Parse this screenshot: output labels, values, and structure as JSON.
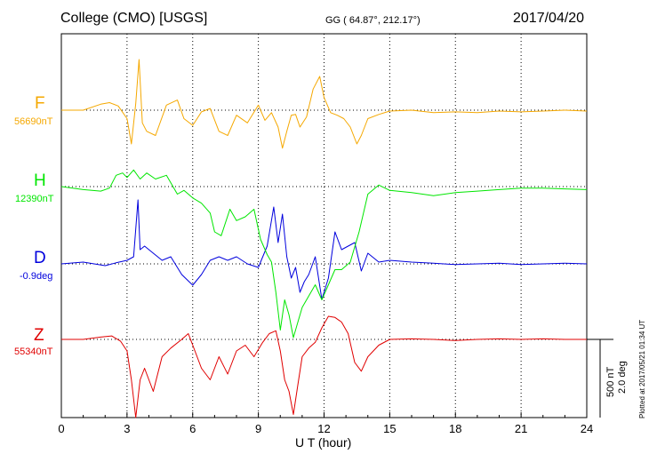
{
  "header": {
    "station": "College (CMO)  [USGS]",
    "coords": "GG ( 64.87°, 212.17°)",
    "date": "2017/04/20"
  },
  "colors": {
    "F": "#f5a800",
    "H": "#00e600",
    "D": "#0000dd",
    "Z": "#e00000",
    "grid": "#000000"
  },
  "channels": [
    {
      "letter": "F",
      "baseline": "56690nT",
      "color": "#f5a800"
    },
    {
      "letter": "H",
      "baseline": "12390nT",
      "color": "#00e600"
    },
    {
      "letter": "D",
      "baseline": "-0.9deg",
      "color": "#0000dd"
    },
    {
      "letter": "Z",
      "baseline": "55340nT",
      "color": "#e00000"
    }
  ],
  "scale": {
    "line1": "500 nT",
    "line2": "2.0 deg"
  },
  "plotted": "Plotted at 2017/05/21 01:34 UT",
  "chart_data": {
    "type": "line",
    "xlabel": "U T (hour)",
    "xlim": [
      0,
      24
    ],
    "xticks": [
      "0",
      "3",
      "6",
      "9",
      "12",
      "15",
      "18",
      "21",
      "24"
    ],
    "series": [
      {
        "name": "F",
        "unit": "nT",
        "x": [
          0,
          1,
          1.8,
          2.2,
          2.6,
          3.0,
          3.2,
          3.4,
          3.55,
          3.7,
          3.9,
          4.3,
          4.8,
          5.3,
          5.6,
          6.0,
          6.4,
          6.8,
          7.2,
          7.6,
          8.0,
          8.5,
          9.0,
          9.3,
          9.6,
          9.9,
          10.1,
          10.3,
          10.5,
          10.7,
          10.9,
          11.2,
          11.5,
          11.8,
          12.0,
          12.3,
          12.6,
          12.9,
          13.2,
          13.5,
          13.7,
          14.0,
          14.5,
          15,
          16,
          17,
          18,
          19,
          20,
          21,
          22,
          23,
          24
        ],
        "y": [
          0,
          0,
          70,
          90,
          50,
          -100,
          -400,
          80,
          600,
          -150,
          -250,
          -300,
          60,
          120,
          -100,
          -180,
          -20,
          20,
          -250,
          -300,
          -60,
          -150,
          60,
          -120,
          -30,
          -200,
          -450,
          -250,
          -60,
          -50,
          -200,
          -80,
          250,
          400,
          150,
          -30,
          -60,
          -100,
          -200,
          -400,
          -300,
          -100,
          -50,
          -10,
          0,
          -30,
          -20,
          -30,
          -10,
          -20,
          -10,
          0,
          -10
        ]
      },
      {
        "name": "H",
        "unit": "nT",
        "x": [
          0,
          1,
          1.8,
          2.2,
          2.5,
          2.8,
          3.0,
          3.3,
          3.6,
          3.9,
          4.3,
          4.8,
          5.3,
          5.6,
          6.0,
          6.4,
          6.8,
          7.0,
          7.3,
          7.7,
          8.0,
          8.4,
          8.8,
          9.1,
          9.4,
          9.6,
          9.8,
          10.0,
          10.2,
          10.4,
          10.6,
          10.8,
          11.0,
          11.2,
          11.4,
          11.6,
          11.9,
          12.2,
          12.5,
          12.8,
          13.2,
          13.6,
          14.0,
          14.5,
          15,
          16,
          17,
          18,
          19,
          20,
          21,
          22,
          23,
          24
        ],
        "y": [
          0,
          -40,
          -60,
          -20,
          150,
          180,
          120,
          220,
          100,
          180,
          100,
          150,
          -100,
          -50,
          -150,
          -220,
          -350,
          -600,
          -650,
          -300,
          -450,
          -400,
          -300,
          -700,
          -900,
          -1000,
          -1400,
          -1900,
          -1500,
          -1700,
          -2000,
          -1800,
          -1600,
          -1500,
          -1400,
          -1300,
          -1500,
          -1300,
          -1100,
          -1100,
          -1000,
          -600,
          -100,
          20,
          -50,
          -80,
          -120,
          -80,
          -60,
          -40,
          -20,
          -20,
          -30,
          -40
        ]
      },
      {
        "name": "D",
        "unit": "deg",
        "x": [
          0,
          1,
          2,
          2.5,
          3.0,
          3.3,
          3.5,
          3.6,
          3.8,
          4.2,
          4.6,
          5.0,
          5.5,
          6.0,
          6.4,
          6.8,
          7.2,
          7.6,
          8.0,
          8.5,
          9.0,
          9.4,
          9.7,
          9.9,
          10.1,
          10.3,
          10.5,
          10.7,
          10.9,
          11.1,
          11.3,
          11.6,
          11.9,
          12.2,
          12.5,
          12.8,
          13.1,
          13.4,
          13.7,
          14.0,
          14.5,
          15,
          16,
          17,
          18,
          19,
          20,
          21,
          22,
          23,
          24
        ],
        "y": [
          0,
          0.05,
          -0.05,
          0.03,
          0.1,
          0.2,
          1.8,
          0.4,
          0.5,
          0.3,
          0.1,
          0.2,
          -0.3,
          -0.6,
          -0.3,
          0.1,
          0.2,
          0.1,
          0.2,
          0,
          -0.1,
          0.5,
          1.6,
          0.6,
          1.4,
          0.2,
          -0.4,
          -0.1,
          -0.8,
          -0.5,
          -0.3,
          0.2,
          -1.0,
          -0.4,
          0.9,
          0.4,
          0.5,
          0.6,
          -0.2,
          0.3,
          0.05,
          0.1,
          0.05,
          0.02,
          -0.02,
          0,
          0.02,
          -0.02,
          0,
          0.02,
          0
        ]
      },
      {
        "name": "Z",
        "unit": "nT",
        "x": [
          0,
          1,
          1.8,
          2.3,
          2.7,
          3.0,
          3.2,
          3.4,
          3.6,
          3.8,
          4.2,
          4.6,
          5.0,
          5.5,
          5.8,
          6.0,
          6.4,
          6.8,
          7.2,
          7.6,
          8.0,
          8.4,
          8.8,
          9.2,
          9.5,
          9.8,
          10.0,
          10.2,
          10.4,
          10.6,
          10.8,
          11.0,
          11.3,
          11.6,
          11.9,
          12.2,
          12.5,
          12.8,
          13.1,
          13.4,
          13.7,
          14.0,
          14.5,
          15,
          16,
          17,
          18,
          19,
          20,
          21,
          22,
          23,
          24
        ],
        "y": [
          0,
          0,
          40,
          60,
          -30,
          -200,
          -700,
          -1400,
          -700,
          -500,
          -900,
          -300,
          -150,
          0,
          100,
          -100,
          -500,
          -700,
          -300,
          -600,
          -200,
          -100,
          -300,
          -50,
          100,
          150,
          -200,
          -700,
          -900,
          -1300,
          -800,
          -300,
          -150,
          -50,
          200,
          400,
          380,
          300,
          100,
          -400,
          -550,
          -300,
          -100,
          0,
          10,
          0,
          -20,
          0,
          10,
          0,
          10,
          0,
          0
        ]
      }
    ]
  }
}
